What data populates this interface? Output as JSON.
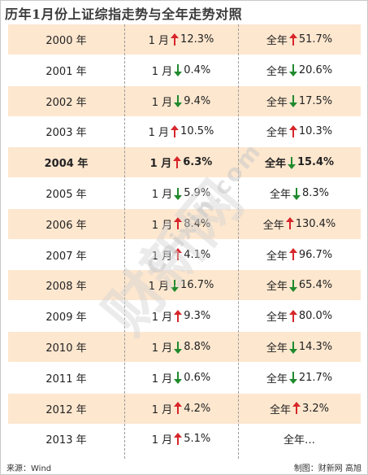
{
  "title": "历年1月份上证综指走势与全年走势对照",
  "chart_data": {
    "type": "table",
    "columns": [
      "year",
      "january",
      "full_year"
    ],
    "colors": {
      "up": "#d7262a",
      "down": "#1f8a2d",
      "row_alt": "#fde7cf"
    },
    "rows": [
      {
        "year": "2000 年",
        "jan_label": "1 月",
        "jan_dir": "up",
        "jan_value": "12.3%",
        "full_label": "全年",
        "full_dir": "up",
        "full_value": "51.7%",
        "bold": false
      },
      {
        "year": "2001 年",
        "jan_label": "1 月",
        "jan_dir": "down",
        "jan_value": "0.4%",
        "full_label": "全年",
        "full_dir": "down",
        "full_value": "20.6%",
        "bold": false
      },
      {
        "year": "2002 年",
        "jan_label": "1 月",
        "jan_dir": "down",
        "jan_value": "9.4%",
        "full_label": "全年",
        "full_dir": "down",
        "full_value": "17.5%",
        "bold": false
      },
      {
        "year": "2003 年",
        "jan_label": "1 月",
        "jan_dir": "up",
        "jan_value": "10.5%",
        "full_label": "全年",
        "full_dir": "up",
        "full_value": "10.3%",
        "bold": false
      },
      {
        "year": "2004 年",
        "jan_label": "1 月",
        "jan_dir": "up",
        "jan_value": "6.3%",
        "full_label": "全年",
        "full_dir": "down",
        "full_value": "15.4%",
        "bold": true
      },
      {
        "year": "2005 年",
        "jan_label": "1 月",
        "jan_dir": "down",
        "jan_value": "5.9%",
        "full_label": "全年",
        "full_dir": "down",
        "full_value": "8.3%",
        "bold": false
      },
      {
        "year": "2006 年",
        "jan_label": "1 月",
        "jan_dir": "up",
        "jan_value": "8.4%",
        "full_label": "全年",
        "full_dir": "up",
        "full_value": "130.4%",
        "bold": false
      },
      {
        "year": "2007 年",
        "jan_label": "1 月",
        "jan_dir": "up",
        "jan_value": "4.1%",
        "full_label": "全年",
        "full_dir": "up",
        "full_value": "96.7%",
        "bold": false
      },
      {
        "year": "2008 年",
        "jan_label": "1 月",
        "jan_dir": "down",
        "jan_value": "16.7%",
        "full_label": "全年",
        "full_dir": "down",
        "full_value": "65.4%",
        "bold": false
      },
      {
        "year": "2009 年",
        "jan_label": "1 月",
        "jan_dir": "up",
        "jan_value": "9.3%",
        "full_label": "全年",
        "full_dir": "up",
        "full_value": "80.0%",
        "bold": false
      },
      {
        "year": "2010 年",
        "jan_label": "1 月",
        "jan_dir": "down",
        "jan_value": "8.8%",
        "full_label": "全年",
        "full_dir": "down",
        "full_value": "14.3%",
        "bold": false
      },
      {
        "year": "2011 年",
        "jan_label": "1 月",
        "jan_dir": "down",
        "jan_value": "0.6%",
        "full_label": "全年",
        "full_dir": "down",
        "full_value": "21.7%",
        "bold": false
      },
      {
        "year": "2012 年",
        "jan_label": "1 月",
        "jan_dir": "up",
        "jan_value": "4.2%",
        "full_label": "全年",
        "full_dir": "up",
        "full_value": "3.2%",
        "bold": false
      },
      {
        "year": "2013 年",
        "jan_label": "1 月",
        "jan_dir": "up",
        "jan_value": "5.1%",
        "full_label": "全年…",
        "full_dir": "",
        "full_value": "",
        "bold": false
      }
    ]
  },
  "footer": {
    "source": "来源：Wind",
    "credit": "制图：财新网 高旭"
  },
  "watermark": {
    "cn": "财新网",
    "en": "Caixin.com"
  }
}
